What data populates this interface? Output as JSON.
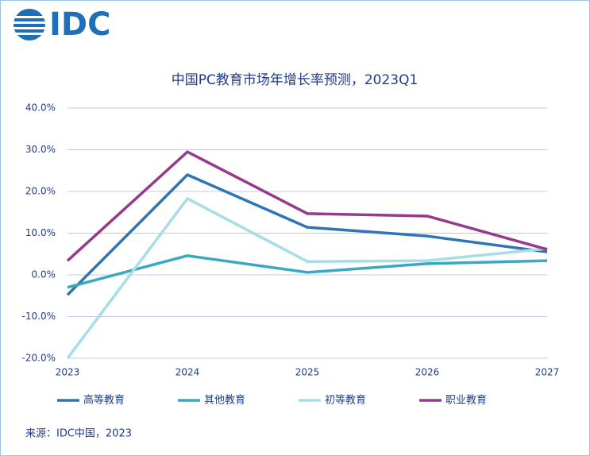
{
  "logo": "IDC",
  "source": "来源：IDC中国，2023",
  "chart_data": {
    "type": "line",
    "title": "中国PC教育市场年增长率预测，2023Q1",
    "categories": [
      "2023",
      "2024",
      "2025",
      "2026",
      "2027"
    ],
    "series": [
      {
        "name": "高等教育",
        "color": "#2e75b6",
        "values": [
          -4.8,
          24.0,
          11.4,
          9.3,
          5.5
        ]
      },
      {
        "name": "其他教育",
        "color": "#3aa8c1",
        "values": [
          -3.0,
          4.6,
          0.6,
          2.7,
          3.4
        ]
      },
      {
        "name": "初等教育",
        "color": "#a6dde6",
        "values": [
          -20.0,
          18.3,
          3.2,
          3.4,
          6.3
        ]
      },
      {
        "name": "职业教育",
        "color": "#953a8c",
        "values": [
          3.4,
          29.5,
          14.7,
          14.1,
          6.1
        ]
      }
    ],
    "ylim": [
      -20,
      40
    ],
    "yticks": [
      {
        "value": -20,
        "label": "-20.0%"
      },
      {
        "value": -10,
        "label": "-10.0%"
      },
      {
        "value": 0,
        "label": "0.0%"
      },
      {
        "value": 10,
        "label": "10.0%"
      },
      {
        "value": 20,
        "label": "20.0%"
      },
      {
        "value": 30,
        "label": "30.0%"
      },
      {
        "value": 40,
        "label": "40.0%"
      }
    ],
    "grid": true,
    "legend": "bottom"
  }
}
